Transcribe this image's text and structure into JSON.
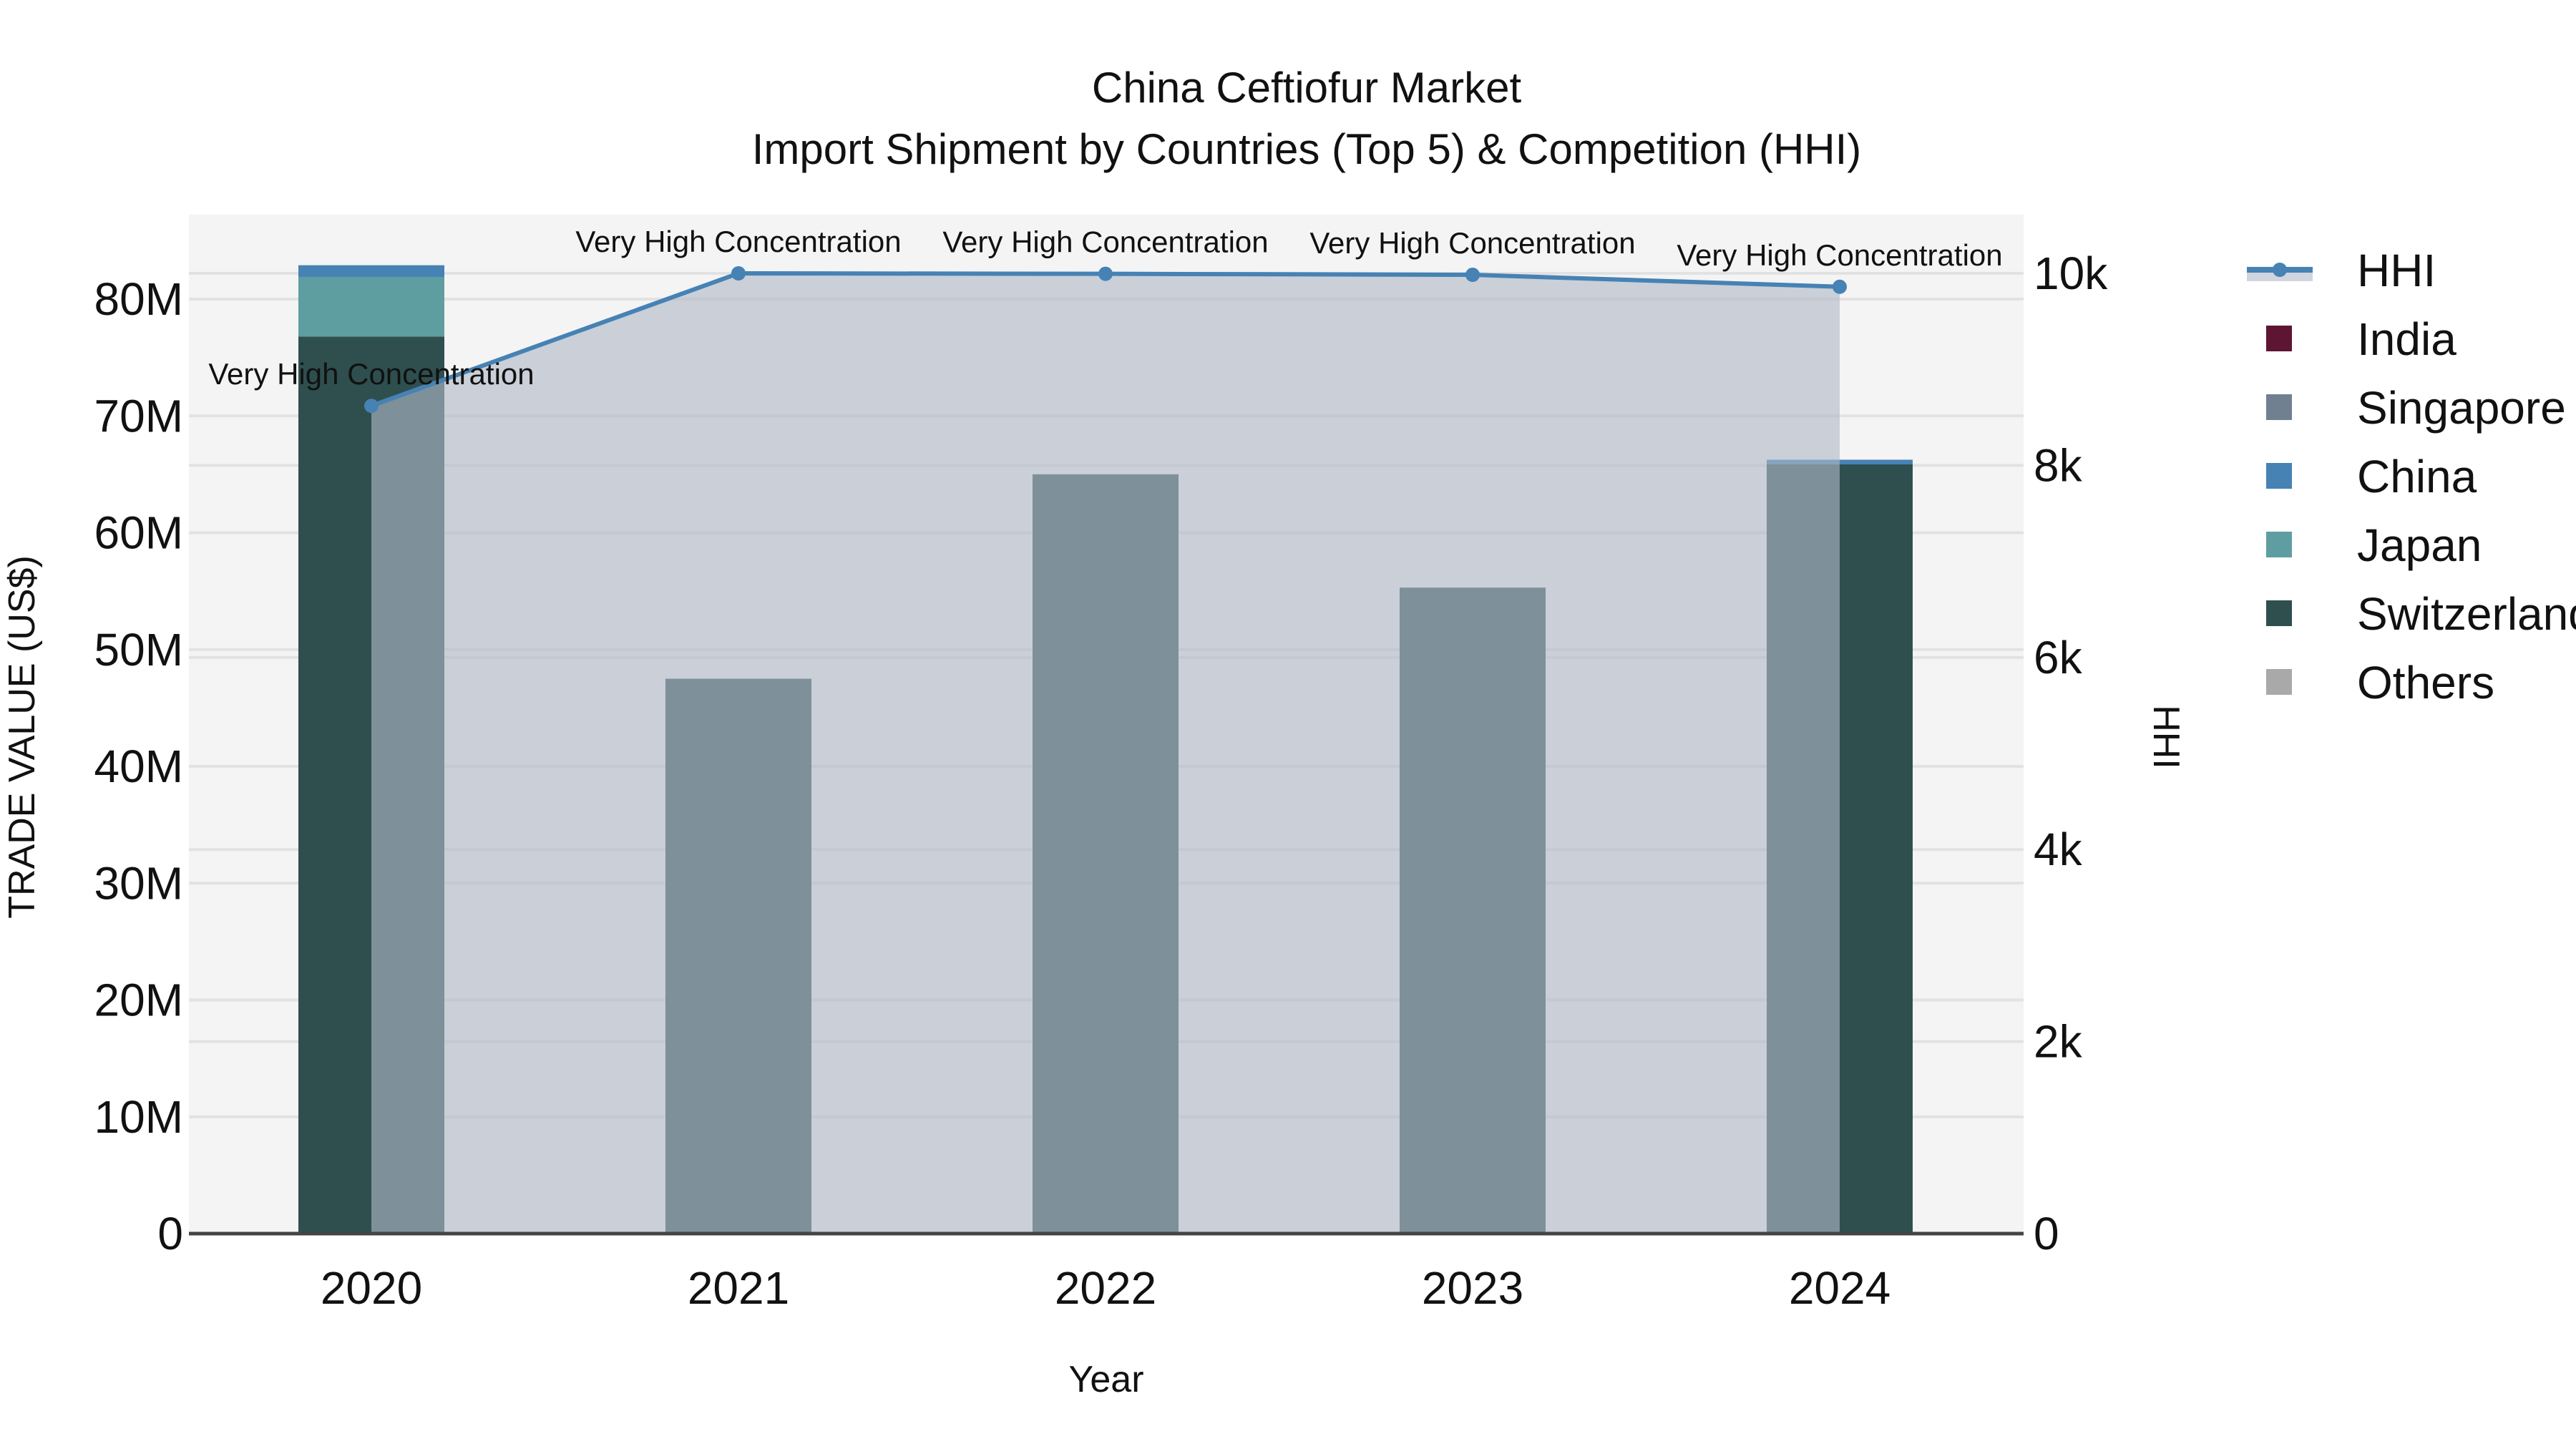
{
  "title": {
    "line1": "China Ceftiofur Market",
    "line2": "Import Shipment by Countries (Top 5) & Competition (HHI)"
  },
  "colors": {
    "India": "#5E1534",
    "Singapore": "#708090",
    "China": "#4682B4",
    "Japan": "#5F9EA0",
    "Switzerland": "#2F4F4F",
    "Others": "#A9A9A9",
    "hhi_line": "#4682B4",
    "hhi_area": "rgba(176,184,199,0.62)",
    "plot_bg": "#F4F4F4",
    "grid": "#E2E2E2"
  },
  "legend": {
    "items": [
      {
        "label": "HHI",
        "type": "line"
      },
      {
        "label": "India",
        "type": "bar"
      },
      {
        "label": "Singapore",
        "type": "bar"
      },
      {
        "label": "China",
        "type": "bar"
      },
      {
        "label": "Japan",
        "type": "bar"
      },
      {
        "label": "Switzerland",
        "type": "bar"
      },
      {
        "label": "Others",
        "type": "bar"
      }
    ]
  },
  "chart_data": {
    "type": "bar",
    "title": "China Ceftiofur Market — Import Shipment by Countries (Top 5) & Competition (HHI)",
    "xlabel": "Year",
    "ylabel": "TRADE VALUE (US$)",
    "y2label": "HHI",
    "categories": [
      "2020",
      "2021",
      "2022",
      "2023",
      "2024"
    ],
    "stacked": true,
    "series": [
      {
        "name": "India",
        "values": [
          0,
          0,
          0,
          0,
          0
        ]
      },
      {
        "name": "Singapore",
        "values": [
          0,
          0,
          0,
          0,
          0
        ]
      },
      {
        "name": "Switzerland",
        "values": [
          76800000,
          47500000,
          65000000,
          55300000,
          65850000
        ]
      },
      {
        "name": "Japan",
        "values": [
          5100000,
          0,
          0,
          0,
          0
        ]
      },
      {
        "name": "China",
        "values": [
          1000000,
          0,
          0,
          0,
          400000
        ]
      },
      {
        "name": "Others",
        "values": [
          0,
          0,
          0,
          0,
          0
        ]
      }
    ],
    "line_series": {
      "name": "HHI",
      "axis": "y2",
      "values": [
        8620,
        10000,
        9995,
        9985,
        9860
      ],
      "fill": "tozeroy",
      "annotations": [
        "Very High Concentration",
        "Very High Concentration",
        "Very High Concentration",
        "Very High Concentration",
        "Very High Concentration"
      ]
    },
    "ylim": [
      0,
      86000000
    ],
    "y2lim": [
      0,
      10500
    ],
    "yticks": [
      0,
      10000000,
      20000000,
      30000000,
      40000000,
      50000000,
      60000000,
      70000000,
      80000000
    ],
    "ytick_labels": [
      "0",
      "10M",
      "20M",
      "30M",
      "40M",
      "50M",
      "60M",
      "70M",
      "80M"
    ],
    "y2ticks": [
      0,
      2000,
      4000,
      6000,
      8000,
      10000
    ],
    "y2tick_labels": [
      "0",
      "2k",
      "4k",
      "6k",
      "8k",
      "10k"
    ],
    "grid": true,
    "legend_position": "right"
  }
}
